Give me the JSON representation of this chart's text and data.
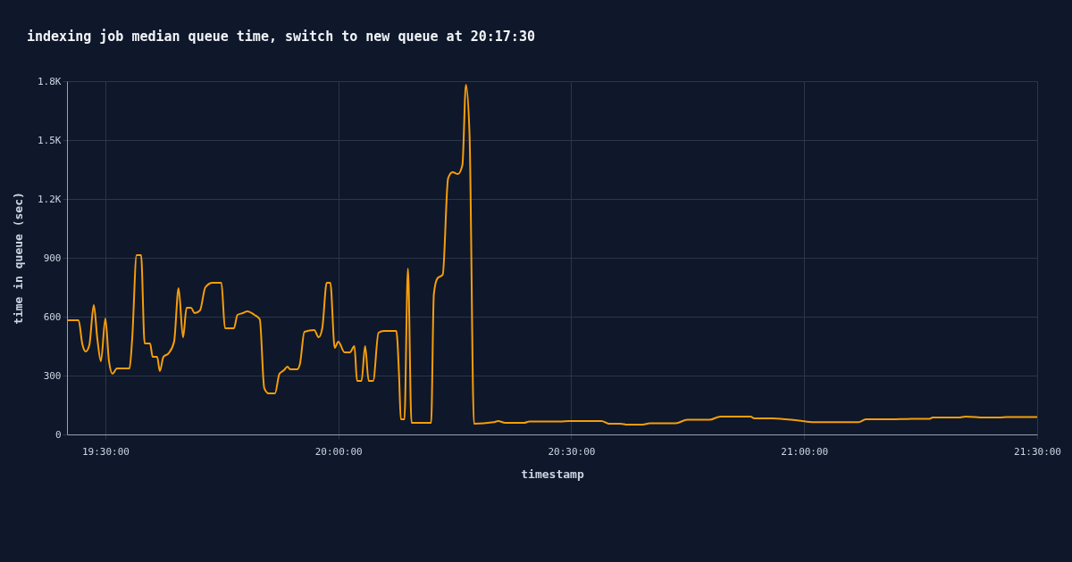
{
  "chart_data": {
    "type": "line",
    "title": "indexing job median queue time, switch to new queue at 20:17:30",
    "xlabel": "timestamp",
    "ylabel": "time in queue (sec)",
    "xlim": [
      19.4176,
      21.5
    ],
    "xticks": [
      {
        "value": 19.5,
        "label": "19:30:00"
      },
      {
        "value": 20,
        "label": "20:00:00"
      },
      {
        "value": 20.5,
        "label": "20:30:00"
      },
      {
        "value": 21,
        "label": "21:00:00"
      },
      {
        "value": 21.5,
        "label": "21:30:00"
      }
    ],
    "ylim": [
      0,
      1800
    ],
    "yticks": [
      0,
      300,
      600,
      900,
      {
        "value": 1200,
        "label": "1.2K"
      },
      {
        "value": 1500,
        "label": "1.5K"
      },
      {
        "value": 1800,
        "label": "1.8K"
      }
    ],
    "grid": true,
    "marker": "none",
    "line_style": "solid",
    "series": [
      {
        "color": "#f59e0b",
        "x": [
          19.4176,
          19.4425,
          19.4502,
          19.4579,
          19.4655,
          19.4751,
          19.4828,
          19.4904,
          19.5,
          19.5077,
          19.5153,
          19.5249,
          19.5517,
          19.5575,
          19.567,
          19.5766,
          19.5843,
          19.5958,
          19.6015,
          19.6111,
          19.6169,
          19.6245,
          19.636,
          19.6475,
          19.6571,
          19.6667,
          19.6743,
          19.6839,
          19.6916,
          19.7031,
          19.7146,
          19.7299,
          19.749,
          19.7567,
          19.7759,
          19.7835,
          19.795,
          19.8046,
          19.8199,
          19.8314,
          19.841,
          19.8506,
          19.864,
          19.8736,
          19.8831,
          19.8908,
          19.8966,
          19.9119,
          19.9176,
          19.9272,
          19.9483,
          19.9579,
          19.9655,
          19.9751,
          19.9828,
          19.9923,
          20.0,
          20.0134,
          20.0249,
          20.0345,
          20.0402,
          20.0498,
          20.0575,
          20.0651,
          20.0747,
          20.0862,
          20.0977,
          20.1245,
          20.1303,
          20.1341,
          20.1418,
          20.1494,
          20.1571,
          20.1992,
          20.205,
          20.2126,
          20.2241,
          20.2356,
          20.2452,
          20.2567,
          20.2663,
          20.2739,
          20.2816,
          20.2912,
          20.3333,
          20.3429,
          20.3582,
          20.3985,
          20.41,
          20.477,
          20.4943,
          20.5651,
          20.5805,
          20.6054,
          20.6207,
          20.6533,
          20.6686,
          20.7241,
          20.749,
          20.7969,
          20.8199,
          20.8851,
          20.8927,
          20.933,
          20.9885,
          21.0211,
          21.1169,
          21.1322,
          21.1877,
          21.228,
          21.2682,
          21.2759,
          21.3314,
          21.3467,
          21.387,
          21.4195,
          21.4349,
          21.5
        ],
        "values": [
          582,
          582,
          464,
          423,
          455,
          659,
          486,
          373,
          591,
          373,
          309,
          336,
          336,
          486,
          914,
          914,
          464,
          464,
          395,
          395,
          323,
          395,
          414,
          473,
          745,
          495,
          645,
          645,
          618,
          632,
          750,
          773,
          773,
          541,
          541,
          609,
          618,
          627,
          609,
          586,
          236,
          209,
          209,
          309,
          327,
          345,
          332,
          332,
          359,
          523,
          532,
          495,
          541,
          773,
          773,
          441,
          473,
          418,
          418,
          450,
          273,
          273,
          450,
          273,
          273,
          518,
          527,
          527,
          305,
          77,
          77,
          845,
          59,
          59,
          714,
          795,
          814,
          1305,
          1336,
          1327,
          1373,
          1782,
          1532,
          55,
          62,
          68,
          59,
          59,
          66,
          66,
          68,
          68,
          55,
          55,
          50,
          50,
          57,
          57,
          75,
          75,
          91,
          91,
          82,
          82,
          70,
          62,
          62,
          77,
          77,
          79,
          79,
          86,
          86,
          91,
          86,
          86,
          89,
          89
        ]
      }
    ]
  }
}
